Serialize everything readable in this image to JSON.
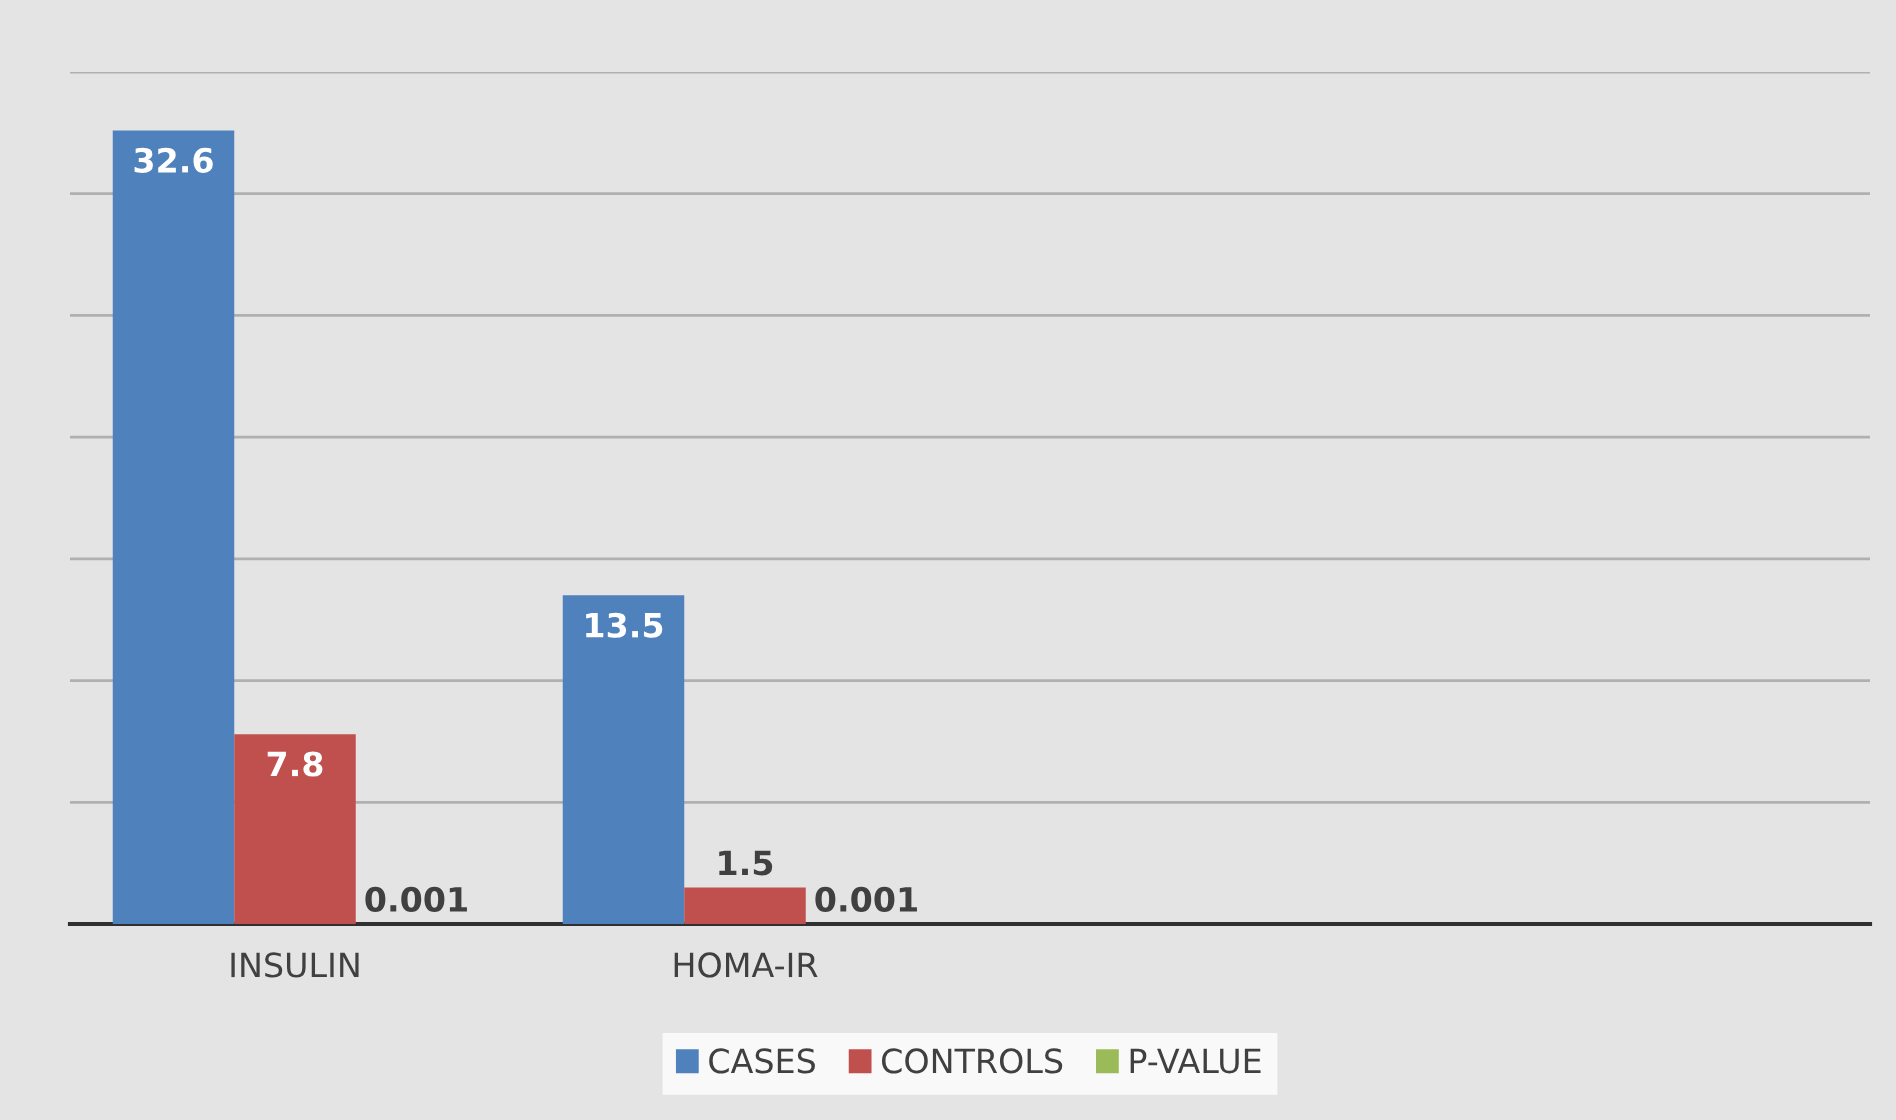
{
  "chart_data": {
    "type": "bar",
    "categories": [
      "INSULIN",
      "HOMA-IR",
      null,
      null
    ],
    "series": [
      {
        "name": "CASES",
        "color": "#4f81bd",
        "values": [
          32.6,
          13.5,
          null,
          null
        ]
      },
      {
        "name": "CONTROLS",
        "color": "#c0504d",
        "values": [
          7.8,
          1.5,
          null,
          null
        ]
      },
      {
        "name": "P-VALUE",
        "color": "#9bbb59",
        "values": [
          0.001,
          0.001,
          null,
          null
        ]
      }
    ],
    "ylim": [
      0,
      35
    ],
    "yticks": [
      {
        "value": 0,
        "label": null
      },
      {
        "value": 5,
        "label": null
      },
      {
        "value": 10,
        "label": null
      },
      {
        "value": 15,
        "label": null
      },
      {
        "value": 20,
        "label": null
      },
      {
        "value": 25,
        "label": null
      },
      {
        "value": 30,
        "label": null
      },
      {
        "value": 35,
        "label": null
      }
    ],
    "grid": "y",
    "legend": "bottom",
    "data_labels": true
  }
}
